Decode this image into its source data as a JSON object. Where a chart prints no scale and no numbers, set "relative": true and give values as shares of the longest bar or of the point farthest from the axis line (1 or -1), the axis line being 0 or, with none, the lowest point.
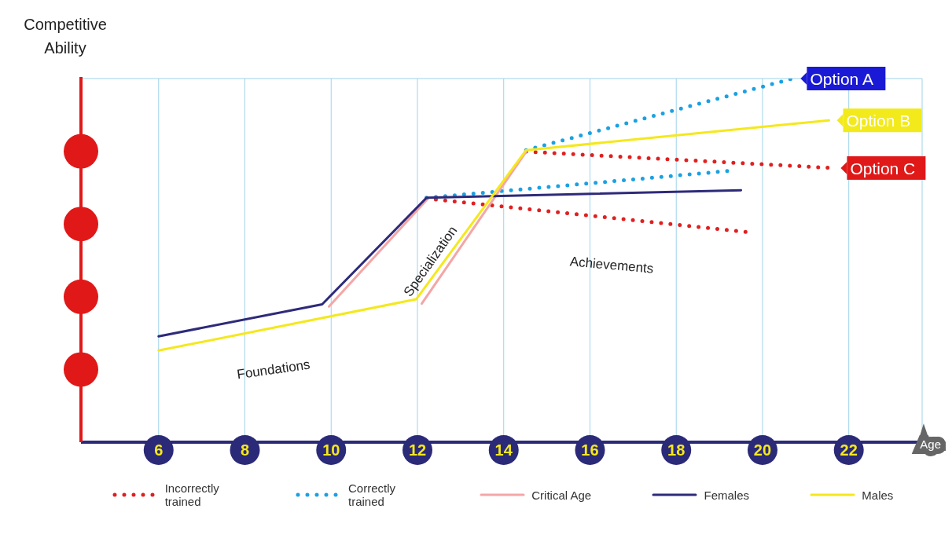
{
  "chart_data": {
    "type": "line",
    "relative": true,
    "ylabel": "Competitive Ability",
    "xlabel": "Age",
    "xlim": [
      4.2,
      23.7
    ],
    "xticks": [
      6,
      8,
      10,
      12,
      14,
      16,
      18,
      20,
      22
    ],
    "grid": true,
    "legend": "bottom",
    "marker": "none",
    "series": [
      {
        "name": "Incorrectly trained",
        "color": "#e02020",
        "line_style": "dotted",
        "x": [
          12.21,
          19.62,
          null,
          14.52,
          21.63
        ],
        "values": [
          0.67,
          0.578,
          null,
          0.799,
          0.754
        ]
      },
      {
        "name": "Correctly trained",
        "color": "#1ba1e2",
        "line_style": "dotted",
        "x": [
          12.21,
          19.22,
          null,
          14.52,
          20.7
        ],
        "values": [
          0.672,
          0.746,
          null,
          0.803,
          1.0
        ]
      },
      {
        "name": "Critical Age",
        "color": "#f4a6a6",
        "line_style": "solid",
        "x": [
          9.95,
          12.21,
          null,
          12.1,
          14.52
        ],
        "values": [
          0.373,
          0.666,
          null,
          0.381,
          0.799
        ]
      },
      {
        "name": "Females",
        "color": "#2e2a7a",
        "line_style": "solid",
        "x": [
          6,
          9.79,
          12.21,
          19.5
        ],
        "values": [
          0.291,
          0.379,
          0.672,
          0.693
        ]
      },
      {
        "name": "Males",
        "color": "#f5e81c",
        "line_style": "solid",
        "x": [
          6,
          11.97,
          14.52,
          21.54
        ],
        "values": [
          0.252,
          0.393,
          0.803,
          0.885
        ]
      }
    ],
    "annotations": [
      {
        "text": "Option A",
        "x": 20.7,
        "y": 1.0
      },
      {
        "text": "Option B",
        "x": 21.54,
        "y": 0.885
      },
      {
        "text": "Option C",
        "x": 21.63,
        "y": 0.754
      },
      "Foundations",
      "Specialization",
      "Achievements"
    ]
  }
}
